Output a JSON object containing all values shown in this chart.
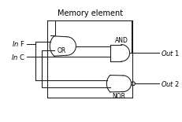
{
  "title": "Memory element",
  "label_inf": "In F",
  "label_inc": "In C",
  "label_out1": "Out 1",
  "label_out2": "Out 2",
  "label_or": "OR",
  "label_and": "AND",
  "label_nor": "NOR",
  "bg_color": "#ffffff",
  "line_color": "#1a1a1a",
  "font_size_title": 7,
  "font_size_labels": 6,
  "font_size_gate": 5.5
}
